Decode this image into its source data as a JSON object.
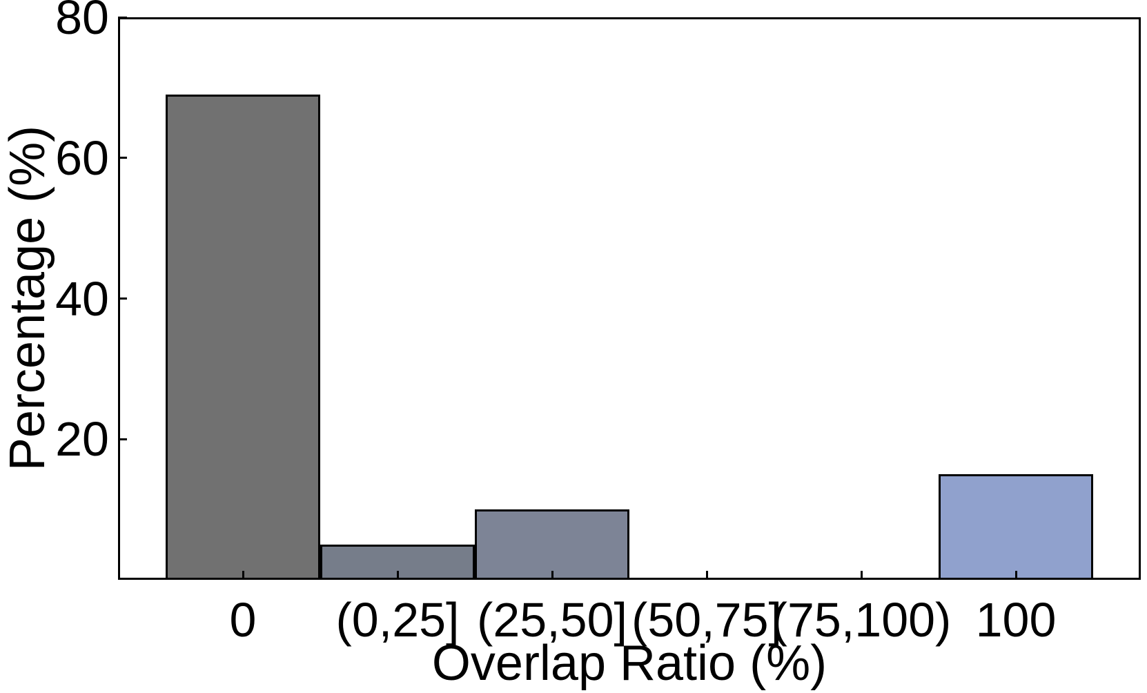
{
  "chart_data": {
    "type": "bar",
    "title": "",
    "xlabel": "Overlap Ratio (%)",
    "ylabel": "Percentage (%)",
    "categories": [
      "0",
      "(0,25]",
      "(25,50]",
      "(50,75]",
      "(75,100)",
      "100"
    ],
    "values": [
      69,
      5,
      10,
      0,
      0,
      15
    ],
    "bar_colors": [
      "#717171",
      "#767D8A",
      "#7D8496",
      "#838EAB",
      "#8A98BC",
      "#90A1CD"
    ],
    "bar_edge_color": "#000000",
    "ylim": [
      0,
      80
    ],
    "yticks": [
      20,
      40,
      60,
      80
    ],
    "grid": false,
    "legend": "none",
    "tick_direction": "in",
    "background": "#FFFFFF"
  }
}
